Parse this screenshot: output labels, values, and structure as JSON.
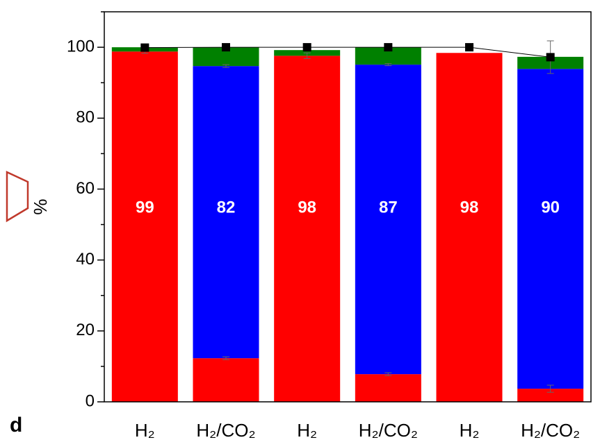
{
  "chart_data": {
    "type": "stacked_bar",
    "panel_label": "d",
    "ylabel": "%",
    "categories": [
      "H₂",
      "H₂/CO₂",
      "H₂",
      "H₂/CO₂",
      "H₂",
      "H₂/CO₂"
    ],
    "series": [
      {
        "color": "#ff0000",
        "values": [
          98.8,
          12.3,
          97.6,
          7.8,
          98.4,
          3.7
        ],
        "errors": [
          0.5,
          0.4,
          0.8,
          0.4,
          0,
          1.0
        ]
      },
      {
        "color": "#0000ff",
        "values": [
          0,
          82.4,
          0,
          87.3,
          0,
          90.2
        ],
        "errors": [
          0,
          0.4,
          0,
          0.3,
          0,
          0
        ],
        "value_labels": [
          null,
          "82",
          null,
          "87",
          null,
          "90"
        ]
      },
      {
        "color": "#008000",
        "values": [
          1.2,
          5.3,
          1.6,
          4.9,
          0,
          3.4
        ]
      }
    ],
    "red_labels": [
      "99",
      null,
      "98",
      null,
      "98",
      null
    ],
    "points": {
      "color": "#000000",
      "values": [
        99.9,
        100,
        100,
        100,
        100,
        97.2
      ],
      "errors": [
        0.4,
        0,
        0.3,
        0,
        0,
        4.6
      ]
    },
    "ylim": [
      0,
      110
    ],
    "yticks": [
      0,
      20,
      40,
      60,
      80,
      100
    ],
    "yminor": [
      10,
      30,
      50,
      70,
      90,
      110
    ]
  }
}
